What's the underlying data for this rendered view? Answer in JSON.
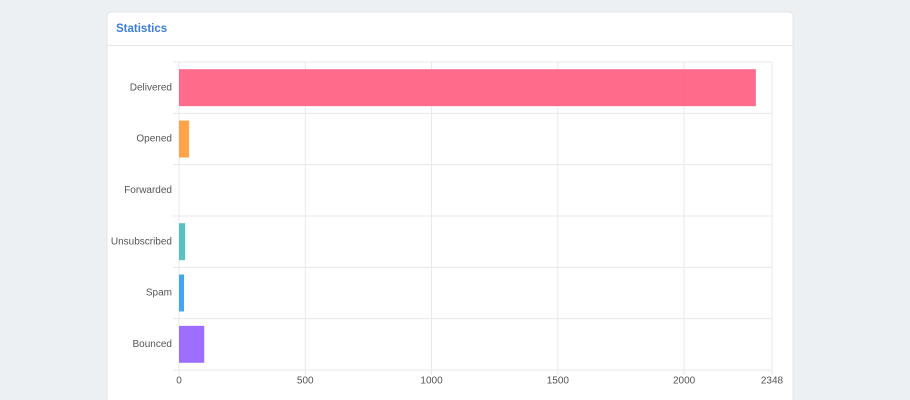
{
  "chart_data": {
    "type": "hbar",
    "title": "Statistics",
    "categories": [
      "Delivered",
      "Opened",
      "Forwarded",
      "Unsubscribed",
      "Spam",
      "Bounced"
    ],
    "values": [
      2284,
      40,
      0,
      24,
      20,
      100
    ],
    "colors": [
      "#ff6384",
      "#ff9f40",
      "#ffcd56",
      "#4bc0c0",
      "#36a2eb",
      "#9966ff"
    ],
    "xlim": [
      0,
      2348
    ],
    "xticks": [
      0,
      500,
      1000,
      1500,
      2000,
      2348
    ],
    "grid": true
  }
}
